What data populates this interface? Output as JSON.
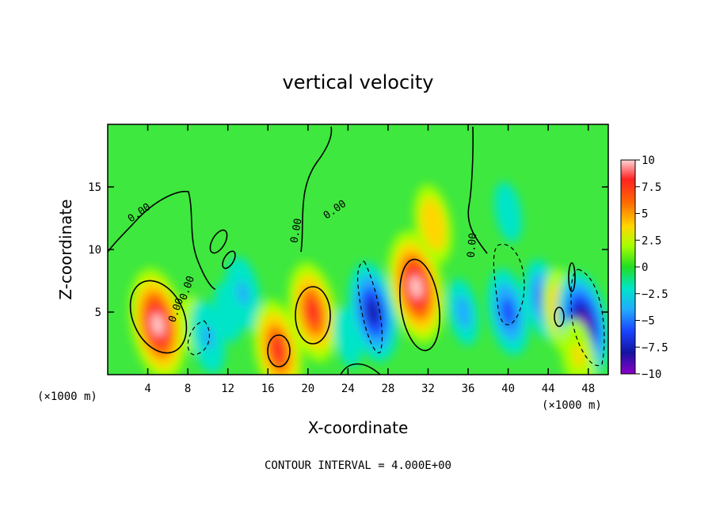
{
  "chart_data": {
    "type": "heatmap",
    "title": "vertical velocity",
    "xlabel": "X-coordinate",
    "ylabel": "Z-coordinate",
    "x_unit_note_left": "(×1000 m)",
    "x_unit_note_right": "(×1000 m)",
    "footer": "CONTOUR INTERVAL = 4.000E+00",
    "xlim": [
      0,
      50
    ],
    "ylim": [
      0,
      20
    ],
    "xticks": [
      4,
      8,
      12,
      16,
      20,
      24,
      28,
      32,
      36,
      40,
      44,
      48
    ],
    "yticks": [
      5,
      10,
      15
    ],
    "colorbar": {
      "ticks": [
        "10",
        "7.5",
        "5",
        "2.5",
        "0",
        "−2.5",
        "−5",
        "−7.5",
        "−10"
      ],
      "range": [
        -10,
        10
      ]
    },
    "contour_labels": [
      "0.00",
      "0.00",
      "0.00",
      "0.00",
      "0.00",
      "0.00"
    ],
    "features": [
      {
        "x": 5,
        "z": 4,
        "w": 10
      },
      {
        "x": 8.5,
        "z": 4,
        "w": 2
      },
      {
        "x": 10,
        "z": 3,
        "w": -4
      },
      {
        "x": 12,
        "z": 5,
        "w": -2
      },
      {
        "x": 13.5,
        "z": 6.5,
        "w": -4
      },
      {
        "x": 17,
        "z": 2,
        "w": 8
      },
      {
        "x": 20.5,
        "z": 5,
        "w": 8
      },
      {
        "x": 24,
        "z": 3,
        "w": -2
      },
      {
        "x": 26.5,
        "z": 5,
        "w": -8
      },
      {
        "x": 30.8,
        "z": 7,
        "w": 10
      },
      {
        "x": 32.5,
        "z": 12,
        "w": 5
      },
      {
        "x": 35.5,
        "z": 5,
        "w": -3
      },
      {
        "x": 40,
        "z": 5,
        "w": -6
      },
      {
        "x": 43.5,
        "z": 6,
        "w": -5
      },
      {
        "x": 45.5,
        "z": 5,
        "w": 6
      },
      {
        "x": 47.5,
        "z": 4,
        "w": -9
      },
      {
        "x": 40,
        "z": 13,
        "w": -2
      },
      {
        "x": 47,
        "z": 1.5,
        "w": 4
      }
    ]
  }
}
